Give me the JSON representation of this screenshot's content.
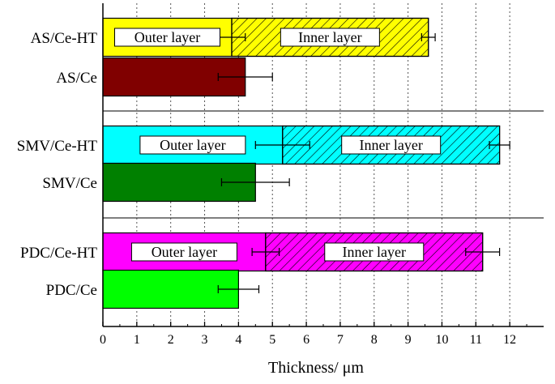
{
  "chart_data": {
    "type": "bar",
    "orientation": "horizontal",
    "stacked": true,
    "xlabel": "Thickness/ μm",
    "xlim": [
      0,
      13
    ],
    "xticks": [
      0,
      1,
      2,
      3,
      4,
      5,
      6,
      7,
      8,
      9,
      10,
      11,
      12
    ],
    "grid": "vertical dotted",
    "categories": [
      "AS/Ce-HT",
      "AS/Ce",
      "SMV/Ce-HT",
      "SMV/Ce",
      "PDC/Ce-HT",
      "PDC/Ce"
    ],
    "layer_labels": {
      "outer": "Outer layer",
      "inner": "Inner layer"
    },
    "bars": [
      {
        "category": "AS/Ce-HT",
        "color": "#ffff00",
        "segments": [
          {
            "layer": "outer",
            "value": 3.8,
            "error": 0.4
          },
          {
            "layer": "inner",
            "value": 5.8,
            "error": 0.2,
            "hatched": true
          }
        ]
      },
      {
        "category": "AS/Ce",
        "color": "#800000",
        "segments": [
          {
            "layer": "total",
            "value": 4.2,
            "error": 0.8
          }
        ]
      },
      {
        "category": "SMV/Ce-HT",
        "color": "#00ffff",
        "segments": [
          {
            "layer": "outer",
            "value": 5.3,
            "error": 0.8
          },
          {
            "layer": "inner",
            "value": 6.4,
            "error": 0.3,
            "hatched": true
          }
        ]
      },
      {
        "category": "SMV/Ce",
        "color": "#008000",
        "segments": [
          {
            "layer": "total",
            "value": 4.5,
            "error": 1.0
          }
        ]
      },
      {
        "category": "PDC/Ce-HT",
        "color": "#ff00ff",
        "segments": [
          {
            "layer": "outer",
            "value": 4.8,
            "error": 0.4
          },
          {
            "layer": "inner",
            "value": 6.4,
            "error": 0.5,
            "hatched": true
          }
        ]
      },
      {
        "category": "PDC/Ce",
        "color": "#00ff00",
        "segments": [
          {
            "layer": "total",
            "value": 4.0,
            "error": 0.6
          }
        ]
      }
    ]
  }
}
